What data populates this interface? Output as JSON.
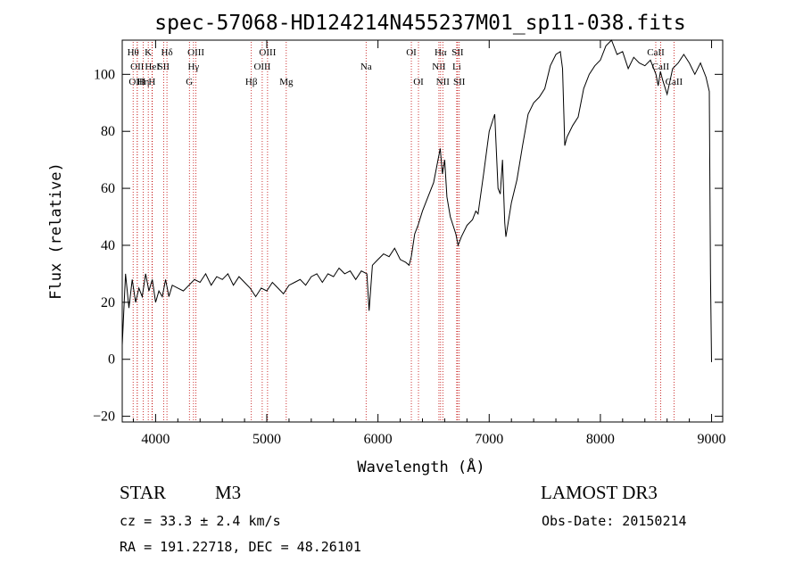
{
  "chart_data": {
    "type": "line",
    "title": "spec-57068-HD124214N455237M01_sp11-038.fits",
    "xlabel": "Wavelength (Å)",
    "ylabel": "Flux (relative)",
    "xlim": [
      3700,
      9100
    ],
    "ylim": [
      -22,
      112
    ],
    "xticks": [
      4000,
      5000,
      6000,
      7000,
      8000,
      9000
    ],
    "yticks": [
      -20,
      0,
      20,
      40,
      60,
      80,
      100
    ],
    "grid": false,
    "line_color": "#000000",
    "marker_color": "#c00000",
    "series": [
      {
        "x": [
          3700,
          3730,
          3760,
          3790,
          3820,
          3850,
          3880,
          3910,
          3940,
          3970,
          4000,
          4030,
          4060,
          4090,
          4120,
          4150,
          4200,
          4250,
          4300,
          4350,
          4400,
          4450,
          4500,
          4550,
          4600,
          4650,
          4700,
          4750,
          4800,
          4850,
          4900,
          4950,
          5000,
          5050,
          5100,
          5150,
          5200,
          5250,
          5300,
          5350,
          5400,
          5450,
          5500,
          5550,
          5600,
          5650,
          5700,
          5750,
          5800,
          5850,
          5900,
          5920,
          5950,
          6000,
          6050,
          6100,
          6150,
          6200,
          6250,
          6280,
          6300,
          6330,
          6360,
          6400,
          6450,
          6500,
          6530,
          6560,
          6580,
          6600,
          6620,
          6650,
          6700,
          6720,
          6750,
          6800,
          6850,
          6880,
          6900,
          6950,
          7000,
          7050,
          7080,
          7100,
          7120,
          7140,
          7150,
          7200,
          7250,
          7300,
          7350,
          7400,
          7450,
          7500,
          7550,
          7600,
          7640,
          7660,
          7680,
          7700,
          7750,
          7800,
          7850,
          7900,
          7950,
          8000,
          8050,
          8100,
          8150,
          8200,
          8250,
          8300,
          8350,
          8400,
          8450,
          8500,
          8520,
          8540,
          8560,
          8600,
          8650,
          8700,
          8750,
          8800,
          8850,
          8900,
          8950,
          8980,
          8990,
          9000
        ],
        "values": [
          5,
          30,
          18,
          28,
          20,
          25,
          22,
          30,
          24,
          28,
          20,
          24,
          22,
          28,
          22,
          26,
          25,
          24,
          26,
          28,
          27,
          30,
          26,
          29,
          28,
          30,
          26,
          29,
          27,
          25,
          22,
          25,
          24,
          27,
          25,
          23,
          26,
          27,
          28,
          26,
          29,
          30,
          27,
          30,
          29,
          32,
          30,
          31,
          28,
          31,
          30,
          17,
          33,
          35,
          37,
          36,
          39,
          35,
          34,
          33,
          36,
          44,
          47,
          52,
          57,
          62,
          68,
          74,
          65,
          70,
          57,
          50,
          44,
          40,
          43,
          47,
          49,
          52,
          51,
          65,
          80,
          86,
          60,
          58,
          70,
          48,
          43,
          55,
          63,
          75,
          86,
          90,
          92,
          95,
          103,
          107,
          108,
          102,
          75,
          78,
          82,
          85,
          95,
          100,
          103,
          105,
          110,
          112,
          107,
          108,
          102,
          106,
          104,
          103,
          105,
          100,
          96,
          101,
          98,
          93,
          102,
          104,
          107,
          104,
          100,
          104,
          99,
          94,
          30,
          -1
        ]
      }
    ],
    "markers": [
      {
        "x": 3798,
        "label": "Hθ",
        "row": 1
      },
      {
        "x": 3835,
        "label": "OII",
        "row": 2
      },
      {
        "x": 3835,
        "label": "OIII",
        "row": 3
      },
      {
        "x": 3889,
        "label": "Hη",
        "row": 3
      },
      {
        "x": 3934,
        "label": "K",
        "row": 1
      },
      {
        "x": 3968,
        "label": "H",
        "row": 3
      },
      {
        "x": 3970,
        "label": "HeI",
        "row": 2
      },
      {
        "x": 4072,
        "label": "SII",
        "row": 2
      },
      {
        "x": 4102,
        "label": "Hδ",
        "row": 1
      },
      {
        "x": 4304,
        "label": "G",
        "row": 3
      },
      {
        "x": 4341,
        "label": "Hγ",
        "row": 2
      },
      {
        "x": 4363,
        "label": "OIII",
        "row": 1
      },
      {
        "x": 4861,
        "label": "Hβ",
        "row": 3
      },
      {
        "x": 4959,
        "label": "OIII",
        "row": 2
      },
      {
        "x": 5007,
        "label": "OIII",
        "row": 1
      },
      {
        "x": 5175,
        "label": "Mg",
        "row": 3
      },
      {
        "x": 5893,
        "label": "Na",
        "row": 2
      },
      {
        "x": 6300,
        "label": "OI",
        "row": 1
      },
      {
        "x": 6364,
        "label": "OI",
        "row": 3
      },
      {
        "x": 6548,
        "label": "NII",
        "row": 2
      },
      {
        "x": 6563,
        "label": "Hα",
        "row": 1
      },
      {
        "x": 6583,
        "label": "NII",
        "row": 3
      },
      {
        "x": 6708,
        "label": "Li",
        "row": 2
      },
      {
        "x": 6716,
        "label": "SII",
        "row": 1
      },
      {
        "x": 6731,
        "label": "SII",
        "row": 3
      },
      {
        "x": 8498,
        "label": "CaII",
        "row": 1
      },
      {
        "x": 8542,
        "label": "CaII",
        "row": 2
      },
      {
        "x": 8662,
        "label": "CaII",
        "row": 3
      }
    ]
  },
  "info": {
    "object_class": "STAR",
    "subclass": "M3",
    "survey": "LAMOST DR3",
    "cz": "cz = 33.3 ± 2.4 km/s",
    "obs_date": "Obs-Date: 20150214",
    "coords": "RA = 191.22718, DEC =  48.26101"
  }
}
